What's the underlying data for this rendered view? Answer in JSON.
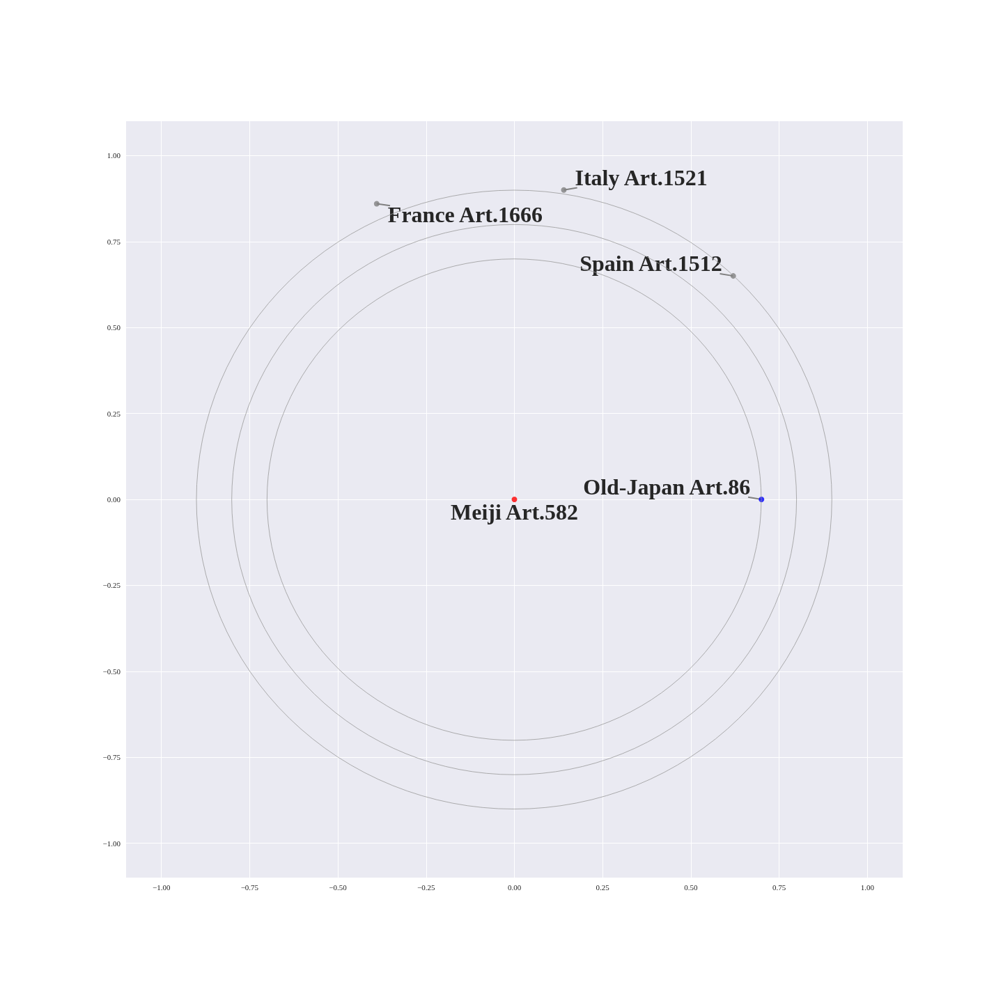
{
  "chart_data": {
    "type": "scatter",
    "xlim": [
      -1.1,
      1.1
    ],
    "ylim": [
      -1.1,
      1.1
    ],
    "xticks": [
      {
        "value": -1,
        "label": "−1.00"
      },
      {
        "value": -0.75,
        "label": "−0.75"
      },
      {
        "value": -0.5,
        "label": "−0.50"
      },
      {
        "value": -0.25,
        "label": "−0.25"
      },
      {
        "value": 0,
        "label": "0.00"
      },
      {
        "value": 0.25,
        "label": "0.25"
      },
      {
        "value": 0.5,
        "label": "0.50"
      },
      {
        "value": 0.75,
        "label": "0.75"
      },
      {
        "value": 1,
        "label": "1.00"
      }
    ],
    "yticks": [
      {
        "value": -1,
        "label": "−1.00"
      },
      {
        "value": -0.75,
        "label": "−0.75"
      },
      {
        "value": -0.5,
        "label": "−0.50"
      },
      {
        "value": -0.25,
        "label": "−0.25"
      },
      {
        "value": 0,
        "label": "0.00"
      },
      {
        "value": 0.25,
        "label": "0.25"
      },
      {
        "value": 0.5,
        "label": "0.50"
      },
      {
        "value": 0.75,
        "label": "0.75"
      },
      {
        "value": 1,
        "label": "1.00"
      }
    ],
    "grid": true,
    "marker": "circle",
    "series": [
      {
        "color": "#808080",
        "x": [
          0.14
        ],
        "values": [
          0.9
        ]
      },
      {
        "color": "#808080",
        "x": [
          -0.39
        ],
        "values": [
          0.86
        ]
      },
      {
        "color": "#808080",
        "x": [
          0.62
        ],
        "values": [
          0.65
        ]
      },
      {
        "color": "#0000ff",
        "x": [
          0.7
        ],
        "values": [
          0
        ]
      },
      {
        "color": "#ff0000",
        "x": [
          0
        ],
        "values": [
          0
        ]
      }
    ],
    "annotations": [
      {
        "text": "Italy Art.1521",
        "x": 0.14,
        "y": 0.9
      },
      {
        "text": "France Art.1666",
        "x": -0.39,
        "y": 0.86
      },
      {
        "text": "Spain Art.1512",
        "x": 0.62,
        "y": 0.65
      },
      {
        "text": "Old-Japan Art.86",
        "x": 0.7,
        "y": 0
      },
      {
        "text": "Meiji Art.582",
        "x": 0,
        "y": 0
      }
    ]
  }
}
